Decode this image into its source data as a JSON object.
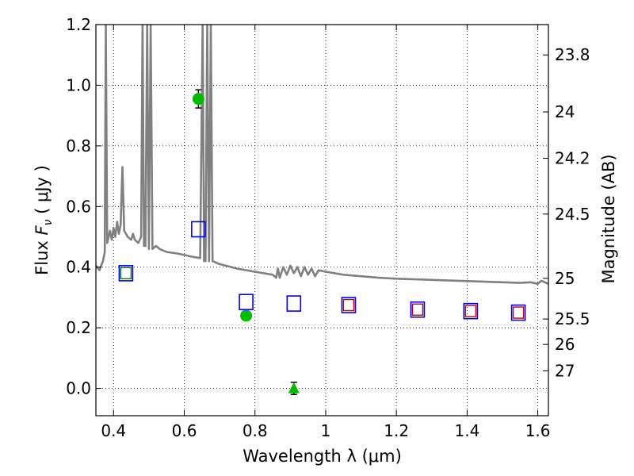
{
  "chart_data": {
    "type": "scatter",
    "title": "",
    "xlabel": "Wavelength  λ (μm)",
    "ylabel_left": {
      "prefix": "Flux  ",
      "symbol": "F",
      "subscript": "ν",
      "suffix": "  ( μJy )"
    },
    "ylabel_right": "Magnitude (AB)",
    "xlim": [
      0.35,
      1.63
    ],
    "ylim": [
      -0.09,
      1.2
    ],
    "grid": true,
    "x_ticks": [
      {
        "value": 0.4,
        "label": "0.4"
      },
      {
        "value": 0.6,
        "label": "0.6"
      },
      {
        "value": 0.8,
        "label": "0.8"
      },
      {
        "value": 1.0,
        "label": "1"
      },
      {
        "value": 1.2,
        "label": "1.2"
      },
      {
        "value": 1.4,
        "label": "1.4"
      },
      {
        "value": 1.6,
        "label": "1.6"
      }
    ],
    "y_ticks": [
      {
        "value": 0.0,
        "label": "0.0"
      },
      {
        "value": 0.2,
        "label": "0.2"
      },
      {
        "value": 0.4,
        "label": "0.4"
      },
      {
        "value": 0.6,
        "label": "0.6"
      },
      {
        "value": 0.8,
        "label": "0.8"
      },
      {
        "value": 1.0,
        "label": "1.0"
      },
      {
        "value": 1.2,
        "label": "1.2"
      }
    ],
    "right_ticks": [
      {
        "label": "23.8",
        "flux": 1.1
      },
      {
        "label": "24",
        "flux": 0.912
      },
      {
        "label": "24.2",
        "flux": 0.759
      },
      {
        "label": "24.5",
        "flux": 0.575
      },
      {
        "label": "25",
        "flux": 0.363
      },
      {
        "label": "25.5",
        "flux": 0.229
      },
      {
        "label": "26",
        "flux": 0.145
      },
      {
        "label": "27",
        "flux": 0.058
      }
    ],
    "series": [
      {
        "kind": "line",
        "color": "#808080",
        "points": [
          [
            0.35,
            0.405
          ],
          [
            0.36,
            0.39
          ],
          [
            0.37,
            0.42
          ],
          [
            0.375,
            0.45
          ],
          [
            0.378,
            1.2
          ],
          [
            0.382,
            0.48
          ],
          [
            0.39,
            0.52
          ],
          [
            0.395,
            0.49
          ],
          [
            0.4,
            0.53
          ],
          [
            0.405,
            0.5
          ],
          [
            0.41,
            0.55
          ],
          [
            0.415,
            0.51
          ],
          [
            0.42,
            0.54
          ],
          [
            0.425,
            0.73
          ],
          [
            0.43,
            0.52
          ],
          [
            0.44,
            0.5
          ],
          [
            0.45,
            0.49
          ],
          [
            0.455,
            0.51
          ],
          [
            0.46,
            0.49
          ],
          [
            0.47,
            0.48
          ],
          [
            0.478,
            0.5
          ],
          [
            0.482,
            1.2
          ],
          [
            0.486,
            0.47
          ],
          [
            0.49,
            0.47
          ],
          [
            0.495,
            1.2
          ],
          [
            0.5,
            0.46
          ],
          [
            0.505,
            1.2
          ],
          [
            0.51,
            0.46
          ],
          [
            0.52,
            0.47
          ],
          [
            0.53,
            0.46
          ],
          [
            0.55,
            0.45
          ],
          [
            0.58,
            0.445
          ],
          [
            0.6,
            0.44
          ],
          [
            0.62,
            0.435
          ],
          [
            0.645,
            0.43
          ],
          [
            0.652,
            1.2
          ],
          [
            0.656,
            0.42
          ],
          [
            0.66,
            0.42
          ],
          [
            0.665,
            1.2
          ],
          [
            0.67,
            0.42
          ],
          [
            0.675,
            1.2
          ],
          [
            0.68,
            0.42
          ],
          [
            0.7,
            0.41
          ],
          [
            0.75,
            0.395
          ],
          [
            0.8,
            0.385
          ],
          [
            0.85,
            0.375
          ],
          [
            0.86,
            0.365
          ],
          [
            0.865,
            0.395
          ],
          [
            0.87,
            0.365
          ],
          [
            0.88,
            0.4
          ],
          [
            0.89,
            0.375
          ],
          [
            0.9,
            0.405
          ],
          [
            0.91,
            0.38
          ],
          [
            0.92,
            0.4
          ],
          [
            0.93,
            0.37
          ],
          [
            0.94,
            0.4
          ],
          [
            0.95,
            0.375
          ],
          [
            0.96,
            0.395
          ],
          [
            0.97,
            0.37
          ],
          [
            0.98,
            0.39
          ],
          [
            1.0,
            0.385
          ],
          [
            1.05,
            0.375
          ],
          [
            1.1,
            0.37
          ],
          [
            1.15,
            0.365
          ],
          [
            1.2,
            0.362
          ],
          [
            1.25,
            0.36
          ],
          [
            1.3,
            0.358
          ],
          [
            1.35,
            0.356
          ],
          [
            1.4,
            0.354
          ],
          [
            1.45,
            0.352
          ],
          [
            1.5,
            0.35
          ],
          [
            1.55,
            0.348
          ],
          [
            1.58,
            0.35
          ],
          [
            1.6,
            0.345
          ],
          [
            1.61,
            0.355
          ],
          [
            1.63,
            0.345
          ]
        ]
      },
      {
        "kind": "measured",
        "color": "#00bb00",
        "points": [
          {
            "x": 0.64,
            "y": 0.955,
            "yerr": 0.03,
            "marker": "circle"
          },
          {
            "x": 0.775,
            "y": 0.24,
            "yerr": 0.015,
            "marker": "circle"
          },
          {
            "x": 0.91,
            "y": 0.0,
            "yerr": 0.02,
            "marker": "triangle"
          }
        ]
      },
      {
        "kind": "model_inner",
        "color": "#007f00",
        "points": [
          {
            "x": 0.435,
            "y": 0.38
          }
        ]
      },
      {
        "kind": "model_outer",
        "color": "#0000ee",
        "points": [
          {
            "x": 0.435,
            "y": 0.38
          },
          {
            "x": 0.64,
            "y": 0.525
          },
          {
            "x": 0.775,
            "y": 0.285
          },
          {
            "x": 0.91,
            "y": 0.28
          },
          {
            "x": 1.065,
            "y": 0.275
          },
          {
            "x": 1.26,
            "y": 0.26
          },
          {
            "x": 1.41,
            "y": 0.255
          },
          {
            "x": 1.545,
            "y": 0.25
          }
        ]
      },
      {
        "kind": "model_inner",
        "color": "#cc0000",
        "points": [
          {
            "x": 1.065,
            "y": 0.275
          },
          {
            "x": 1.26,
            "y": 0.26
          },
          {
            "x": 1.41,
            "y": 0.255
          },
          {
            "x": 1.545,
            "y": 0.25
          }
        ]
      }
    ]
  }
}
